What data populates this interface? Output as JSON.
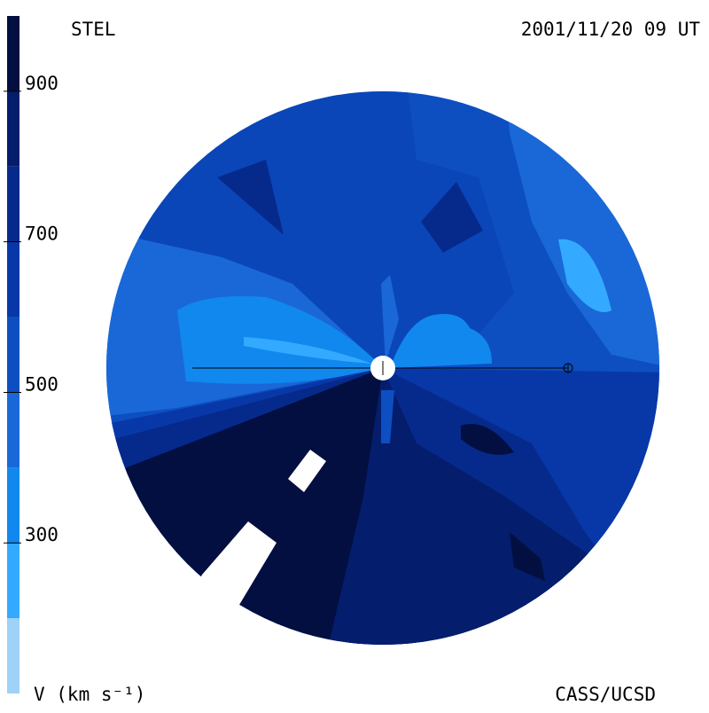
{
  "chart_data": {
    "type": "velocity-map",
    "title": "STEL",
    "date": "2001/11/20 09 UT",
    "credit": "CASS/UCSD",
    "colorbar_label": "V (km s⁻¹)",
    "clim": [
      100,
      1000
    ],
    "cticks": [
      300,
      500,
      700,
      900
    ],
    "levels": [
      100,
      200,
      300,
      400,
      500,
      600,
      700,
      800,
      900,
      1000
    ],
    "colors": [
      "#9fd2f7",
      "#33aaff",
      "#1188ee",
      "#1a68d8",
      "#0d4fc0",
      "#0838a8",
      "#062a8c",
      "#041d6c",
      "#020f40"
    ]
  }
}
